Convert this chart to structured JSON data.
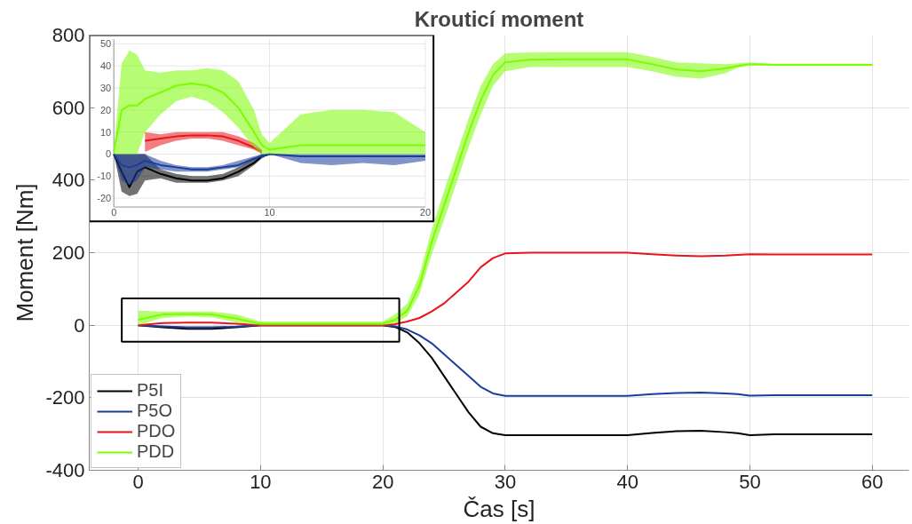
{
  "chart_data": [
    {
      "type": "line",
      "title": "Krouticí moment",
      "xlabel": "Čas [s]",
      "ylabel": "Moment [Nm]",
      "xlim": [
        -4,
        63
      ],
      "ylim": [
        -400,
        800
      ],
      "xticks": [
        0,
        10,
        20,
        30,
        40,
        50,
        60
      ],
      "yticks": [
        -400,
        -200,
        0,
        200,
        400,
        600,
        800
      ],
      "grid": true,
      "legend": "bottom left",
      "x": [
        0,
        2,
        4,
        6,
        8,
        10,
        12,
        14,
        16,
        18,
        20,
        21,
        22,
        23,
        24,
        25,
        26,
        27,
        28,
        29,
        30,
        32,
        35,
        38,
        40,
        42,
        44,
        46,
        48,
        49,
        50,
        52,
        55,
        58,
        60
      ],
      "series": [
        {
          "name": "P5I",
          "color": "#000000",
          "values": [
            0,
            -6,
            -10,
            -10,
            -6,
            0,
            0,
            0,
            0,
            0,
            0,
            -5,
            -20,
            -50,
            -90,
            -140,
            -190,
            -240,
            -280,
            -298,
            -303,
            -303,
            -303,
            -303,
            -303,
            -297,
            -292,
            -291,
            -295,
            -298,
            -303,
            -301,
            -301,
            -301,
            -301
          ]
        },
        {
          "name": "P5O",
          "color": "#1a3d9c",
          "values": [
            0,
            -3,
            -6,
            -6,
            -4,
            0,
            0,
            0,
            0,
            0,
            0,
            -3,
            -12,
            -28,
            -50,
            -80,
            -110,
            -140,
            -170,
            -188,
            -195,
            -195,
            -195,
            -195,
            -195,
            -190,
            -187,
            -186,
            -188,
            -190,
            -194,
            -193,
            -193,
            -193,
            -193
          ]
        },
        {
          "name": "PDO",
          "color": "#e8141a",
          "values": [
            0,
            6,
            7,
            7,
            4,
            0,
            0,
            0,
            0,
            0,
            0,
            3,
            10,
            20,
            38,
            60,
            90,
            120,
            160,
            185,
            198,
            200,
            200,
            200,
            200,
            196,
            192,
            190,
            192,
            194,
            196,
            195,
            195,
            195,
            195
          ]
        },
        {
          "name": "PDD",
          "color": "#7cfc00",
          "values": [
            15,
            30,
            31,
            30,
            18,
            4,
            4,
            4,
            4,
            4,
            4,
            15,
            40,
            110,
            230,
            330,
            430,
            530,
            620,
            690,
            725,
            732,
            733,
            733,
            733,
            720,
            705,
            700,
            708,
            715,
            720,
            718,
            718,
            718,
            718
          ],
          "lower": [
            0,
            20,
            24,
            22,
            8,
            0,
            0,
            0,
            0,
            0,
            0,
            5,
            25,
            85,
            195,
            290,
            390,
            490,
            580,
            660,
            700,
            712,
            712,
            712,
            712,
            700,
            685,
            680,
            695,
            710,
            716,
            715,
            715,
            715,
            715
          ],
          "upper": [
            40,
            38,
            38,
            38,
            30,
            10,
            10,
            10,
            10,
            10,
            10,
            30,
            60,
            140,
            265,
            370,
            470,
            570,
            660,
            720,
            750,
            752,
            753,
            753,
            753,
            740,
            725,
            722,
            720,
            722,
            724,
            721,
            721,
            721,
            721
          ]
        }
      ]
    },
    {
      "type": "line",
      "xlim": [
        0,
        20
      ],
      "ylim": [
        -24,
        52
      ],
      "xticks": [
        0,
        10,
        20
      ],
      "yticks": [
        -20,
        -10,
        0,
        10,
        20,
        30,
        40,
        50
      ],
      "grid": true,
      "x": [
        0,
        0.5,
        1,
        1.5,
        2,
        3,
        4,
        5,
        6,
        7,
        8,
        9,
        9.5,
        10,
        12,
        14,
        16,
        18,
        20
      ],
      "series": [
        {
          "color": "#000000",
          "values": [
            0,
            -8,
            -15,
            -8,
            -6,
            -9,
            -11,
            -12,
            -12,
            -11,
            -8,
            -4,
            -1,
            0,
            null,
            null,
            null,
            null,
            null
          ],
          "lower": [
            0,
            -17,
            -19,
            -18,
            -12,
            -11,
            -13,
            -13,
            -13,
            -12,
            -10,
            -5,
            -2,
            0,
            null,
            null,
            null,
            null,
            null
          ],
          "upper": [
            0,
            0,
            0,
            0,
            0,
            -7,
            -9,
            -10,
            -10,
            -9,
            -6,
            -2,
            0,
            0,
            null,
            null,
            null,
            null,
            null
          ]
        },
        {
          "color": "#1a3d9c",
          "values": [
            0,
            -5,
            -6,
            -5,
            -3,
            -5,
            -6,
            -7,
            -7,
            -6,
            -5,
            -2,
            -1,
            0,
            -1,
            -1,
            -1,
            -1,
            -1
          ],
          "lower": [
            0,
            -12,
            -14,
            -12,
            -6,
            -7,
            -8,
            -8,
            -8,
            -7,
            -6,
            -3,
            -1,
            0,
            -4,
            -5,
            -4,
            -5,
            -3
          ],
          "upper": [
            0,
            0,
            0,
            0,
            0,
            -3,
            -5,
            -6,
            -6,
            -5,
            -3,
            -1,
            0,
            0,
            0,
            0,
            0,
            0,
            0
          ]
        },
        {
          "color": "#e8141a",
          "values": [
            null,
            null,
            null,
            null,
            6,
            7,
            8,
            8.5,
            8.5,
            8,
            6,
            3,
            1,
            null,
            null,
            null,
            null,
            null,
            null
          ],
          "lower": [
            null,
            null,
            null,
            null,
            1,
            4,
            6,
            7,
            7,
            6,
            4,
            2,
            0,
            null,
            null,
            null,
            null,
            null,
            null
          ],
          "upper": [
            null,
            null,
            null,
            null,
            10,
            9,
            10,
            10,
            10,
            10,
            8,
            5,
            2,
            null,
            null,
            null,
            null,
            null,
            null
          ]
        },
        {
          "color": "#7cfc00",
          "values": [
            1,
            20,
            22,
            22,
            25,
            28,
            31,
            32,
            31,
            28,
            21,
            10,
            4,
            2,
            4,
            4,
            4,
            4,
            4
          ],
          "lower": [
            0,
            0,
            0,
            0,
            10,
            18,
            24,
            26,
            24,
            19,
            12,
            3,
            0,
            0,
            0,
            0,
            0,
            0,
            0
          ],
          "upper": [
            2,
            41,
            47,
            45,
            38,
            37,
            38,
            38,
            39,
            38,
            33,
            20,
            9,
            5,
            18,
            20,
            20,
            19,
            10
          ]
        }
      ]
    }
  ]
}
